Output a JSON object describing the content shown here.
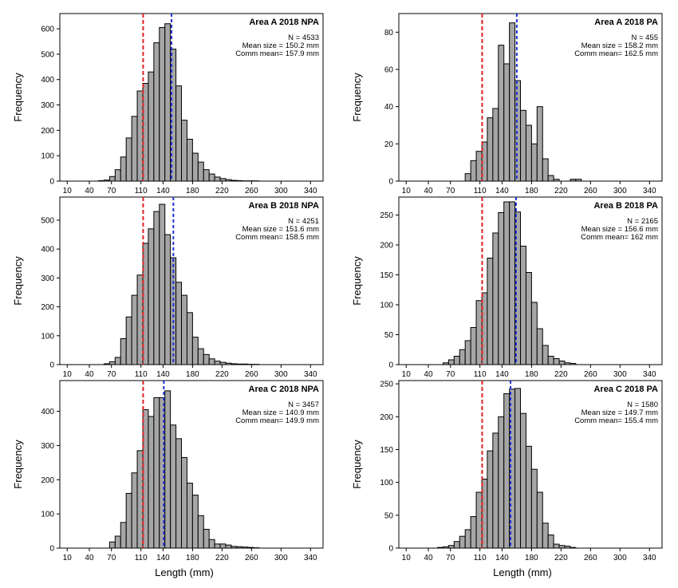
{
  "figure": {
    "xlabel_left": "Length  (mm)",
    "xlabel_right": "Length  (mm)"
  },
  "chart_data": [
    {
      "type": "bar",
      "title": "Area  A 2018  NPA",
      "stats": [
        "N = 4533",
        "Mean size = 150.2 mm",
        "Comm mean= 157.9 mm"
      ],
      "ylabel": "Frequency",
      "xticks": [
        10,
        40,
        70,
        110,
        140,
        180,
        220,
        260,
        300,
        340
      ],
      "yticks": [
        0,
        100,
        200,
        300,
        400,
        500,
        600
      ],
      "xlim": [
        0,
        357
      ],
      "ylim": [
        0,
        660
      ],
      "bin_width": 7.5,
      "bin_starts": [
        52.5,
        60,
        67.5,
        75,
        82.5,
        90,
        97.5,
        105,
        112.5,
        120,
        127.5,
        135,
        142.5,
        150,
        157.5,
        165,
        172.5,
        180,
        187.5,
        195,
        202.5,
        210,
        217.5,
        225,
        232.5,
        240,
        247.5,
        255,
        262.5
      ],
      "values": [
        2,
        4,
        18,
        45,
        95,
        170,
        255,
        355,
        385,
        430,
        545,
        605,
        620,
        520,
        375,
        240,
        165,
        110,
        75,
        45,
        28,
        16,
        10,
        6,
        3,
        2,
        1,
        1,
        1
      ],
      "comm_mean_line": 113,
      "mean_line": 151.5,
      "colors": {
        "bar": "#a6a6a6",
        "edge": "#000000",
        "comm_line": "#e02020",
        "mean_line": "#1f2fd6"
      }
    },
    {
      "type": "bar",
      "title": "Area  A 2018  PA",
      "stats": [
        "N = 455",
        "Mean size = 158.2 mm",
        "Comm mean= 162.5 mm"
      ],
      "ylabel": "Frequency",
      "xticks": [
        10,
        40,
        70,
        110,
        140,
        180,
        220,
        260,
        300,
        340
      ],
      "yticks": [
        0,
        20,
        40,
        60,
        80
      ],
      "xlim": [
        0,
        357
      ],
      "ylim": [
        0,
        90
      ],
      "bin_width": 7.5,
      "bin_starts": [
        90,
        97.5,
        105,
        112.5,
        120,
        127.5,
        135,
        142.5,
        150,
        157.5,
        165,
        172.5,
        180,
        187.5,
        195,
        202.5,
        210,
        217.5,
        225,
        232.5,
        240
      ],
      "values": [
        4,
        11,
        16,
        21,
        34,
        39,
        73,
        63,
        85,
        54,
        38,
        30,
        20,
        40,
        12,
        3,
        1,
        0,
        0,
        1,
        1
      ],
      "comm_mean_line": 113,
      "mean_line": 160,
      "colors": {
        "bar": "#a6a6a6",
        "edge": "#000000",
        "comm_line": "#e02020",
        "mean_line": "#1f2fd6"
      }
    },
    {
      "type": "bar",
      "title": "Area  B 2018  NPA",
      "stats": [
        "N = 4251",
        "Mean size = 151.6 mm",
        "Comm mean= 158.5 mm"
      ],
      "ylabel": "Frequency",
      "xticks": [
        10,
        40,
        70,
        110,
        140,
        180,
        220,
        260,
        300,
        340
      ],
      "yticks": [
        0,
        100,
        200,
        300,
        400,
        500
      ],
      "xlim": [
        0,
        357
      ],
      "ylim": [
        0,
        580
      ],
      "bin_width": 7.5,
      "bin_starts": [
        60,
        67.5,
        75,
        82.5,
        90,
        97.5,
        105,
        112.5,
        120,
        127.5,
        135,
        142.5,
        150,
        157.5,
        165,
        172.5,
        180,
        187.5,
        195,
        202.5,
        210,
        217.5,
        225,
        232.5,
        240,
        247.5,
        255,
        262.5
      ],
      "values": [
        3,
        10,
        25,
        90,
        165,
        240,
        310,
        420,
        470,
        530,
        555,
        450,
        370,
        285,
        240,
        180,
        95,
        55,
        35,
        20,
        12,
        8,
        5,
        3,
        2,
        2,
        1,
        1
      ],
      "comm_mean_line": 113,
      "mean_line": 154,
      "colors": {
        "bar": "#a6a6a6",
        "edge": "#000000",
        "comm_line": "#e02020",
        "mean_line": "#1f2fd6"
      }
    },
    {
      "type": "bar",
      "title": "Area  B 2018  PA",
      "stats": [
        "N = 2165",
        "Mean size = 156.6 mm",
        "Comm mean= 162 mm"
      ],
      "ylabel": "Frequency",
      "xticks": [
        10,
        40,
        70,
        110,
        140,
        180,
        220,
        260,
        300,
        340
      ],
      "yticks": [
        0,
        50,
        100,
        150,
        200,
        250
      ],
      "xlim": [
        0,
        357
      ],
      "ylim": [
        0,
        280
      ],
      "bin_width": 7.5,
      "bin_starts": [
        60,
        67.5,
        75,
        82.5,
        90,
        97.5,
        105,
        112.5,
        120,
        127.5,
        135,
        142.5,
        150,
        157.5,
        165,
        172.5,
        180,
        187.5,
        195,
        202.5,
        210,
        217.5,
        225,
        232.5
      ],
      "values": [
        3,
        8,
        14,
        25,
        40,
        62,
        107,
        120,
        178,
        220,
        254,
        272,
        272,
        255,
        198,
        154,
        104,
        60,
        32,
        14,
        10,
        6,
        3,
        2
      ],
      "comm_mean_line": 113,
      "mean_line": 159,
      "colors": {
        "bar": "#a6a6a6",
        "edge": "#000000",
        "comm_line": "#e02020",
        "mean_line": "#1f2fd6"
      }
    },
    {
      "type": "bar",
      "title": "Area  C 2018  NPA",
      "stats": [
        "N = 3457",
        "Mean size = 140.9 mm",
        "Comm mean= 149.9 mm"
      ],
      "ylabel": "Frequency",
      "xticks": [
        10,
        40,
        70,
        110,
        140,
        180,
        220,
        260,
        300,
        340
      ],
      "yticks": [
        0,
        100,
        200,
        300,
        400
      ],
      "xlim": [
        0,
        357
      ],
      "ylim": [
        0,
        490
      ],
      "bin_width": 7.5,
      "bin_starts": [
        67.5,
        75,
        82.5,
        90,
        97.5,
        105,
        112.5,
        120,
        127.5,
        135,
        142.5,
        150,
        157.5,
        165,
        172.5,
        180,
        187.5,
        195,
        202.5,
        210,
        217.5,
        225,
        232.5,
        240,
        247.5,
        255,
        262.5
      ],
      "values": [
        18,
        35,
        75,
        160,
        220,
        285,
        405,
        385,
        440,
        440,
        460,
        360,
        320,
        265,
        190,
        155,
        95,
        55,
        25,
        12,
        12,
        9,
        5,
        4,
        3,
        2,
        1
      ],
      "comm_mean_line": 113,
      "mean_line": 141,
      "colors": {
        "bar": "#a6a6a6",
        "edge": "#000000",
        "comm_line": "#e02020",
        "mean_line": "#1f2fd6"
      }
    },
    {
      "type": "bar",
      "title": "Area  C 2018  PA",
      "stats": [
        "N = 1580",
        "Mean size = 149.7 mm",
        "Comm mean= 155.4 mm"
      ],
      "ylabel": "Frequency",
      "xticks": [
        10,
        40,
        70,
        110,
        140,
        180,
        220,
        260,
        300,
        340
      ],
      "yticks": [
        0,
        50,
        100,
        150,
        200,
        250
      ],
      "xlim": [
        0,
        357
      ],
      "ylim": [
        0,
        255
      ],
      "bin_width": 7.5,
      "bin_starts": [
        52.5,
        60,
        67.5,
        75,
        82.5,
        90,
        97.5,
        105,
        112.5,
        120,
        127.5,
        135,
        142.5,
        150,
        157.5,
        165,
        172.5,
        180,
        187.5,
        195,
        202.5,
        210,
        217.5,
        225,
        232.5
      ],
      "values": [
        1,
        2,
        4,
        10,
        18,
        28,
        48,
        85,
        105,
        148,
        175,
        200,
        235,
        242,
        243,
        205,
        155,
        120,
        85,
        38,
        20,
        6,
        4,
        3,
        1
      ],
      "comm_mean_line": 113,
      "mean_line": 151.5,
      "colors": {
        "bar": "#a6a6a6",
        "edge": "#000000",
        "comm_line": "#e02020",
        "mean_line": "#1f2fd6"
      }
    }
  ]
}
